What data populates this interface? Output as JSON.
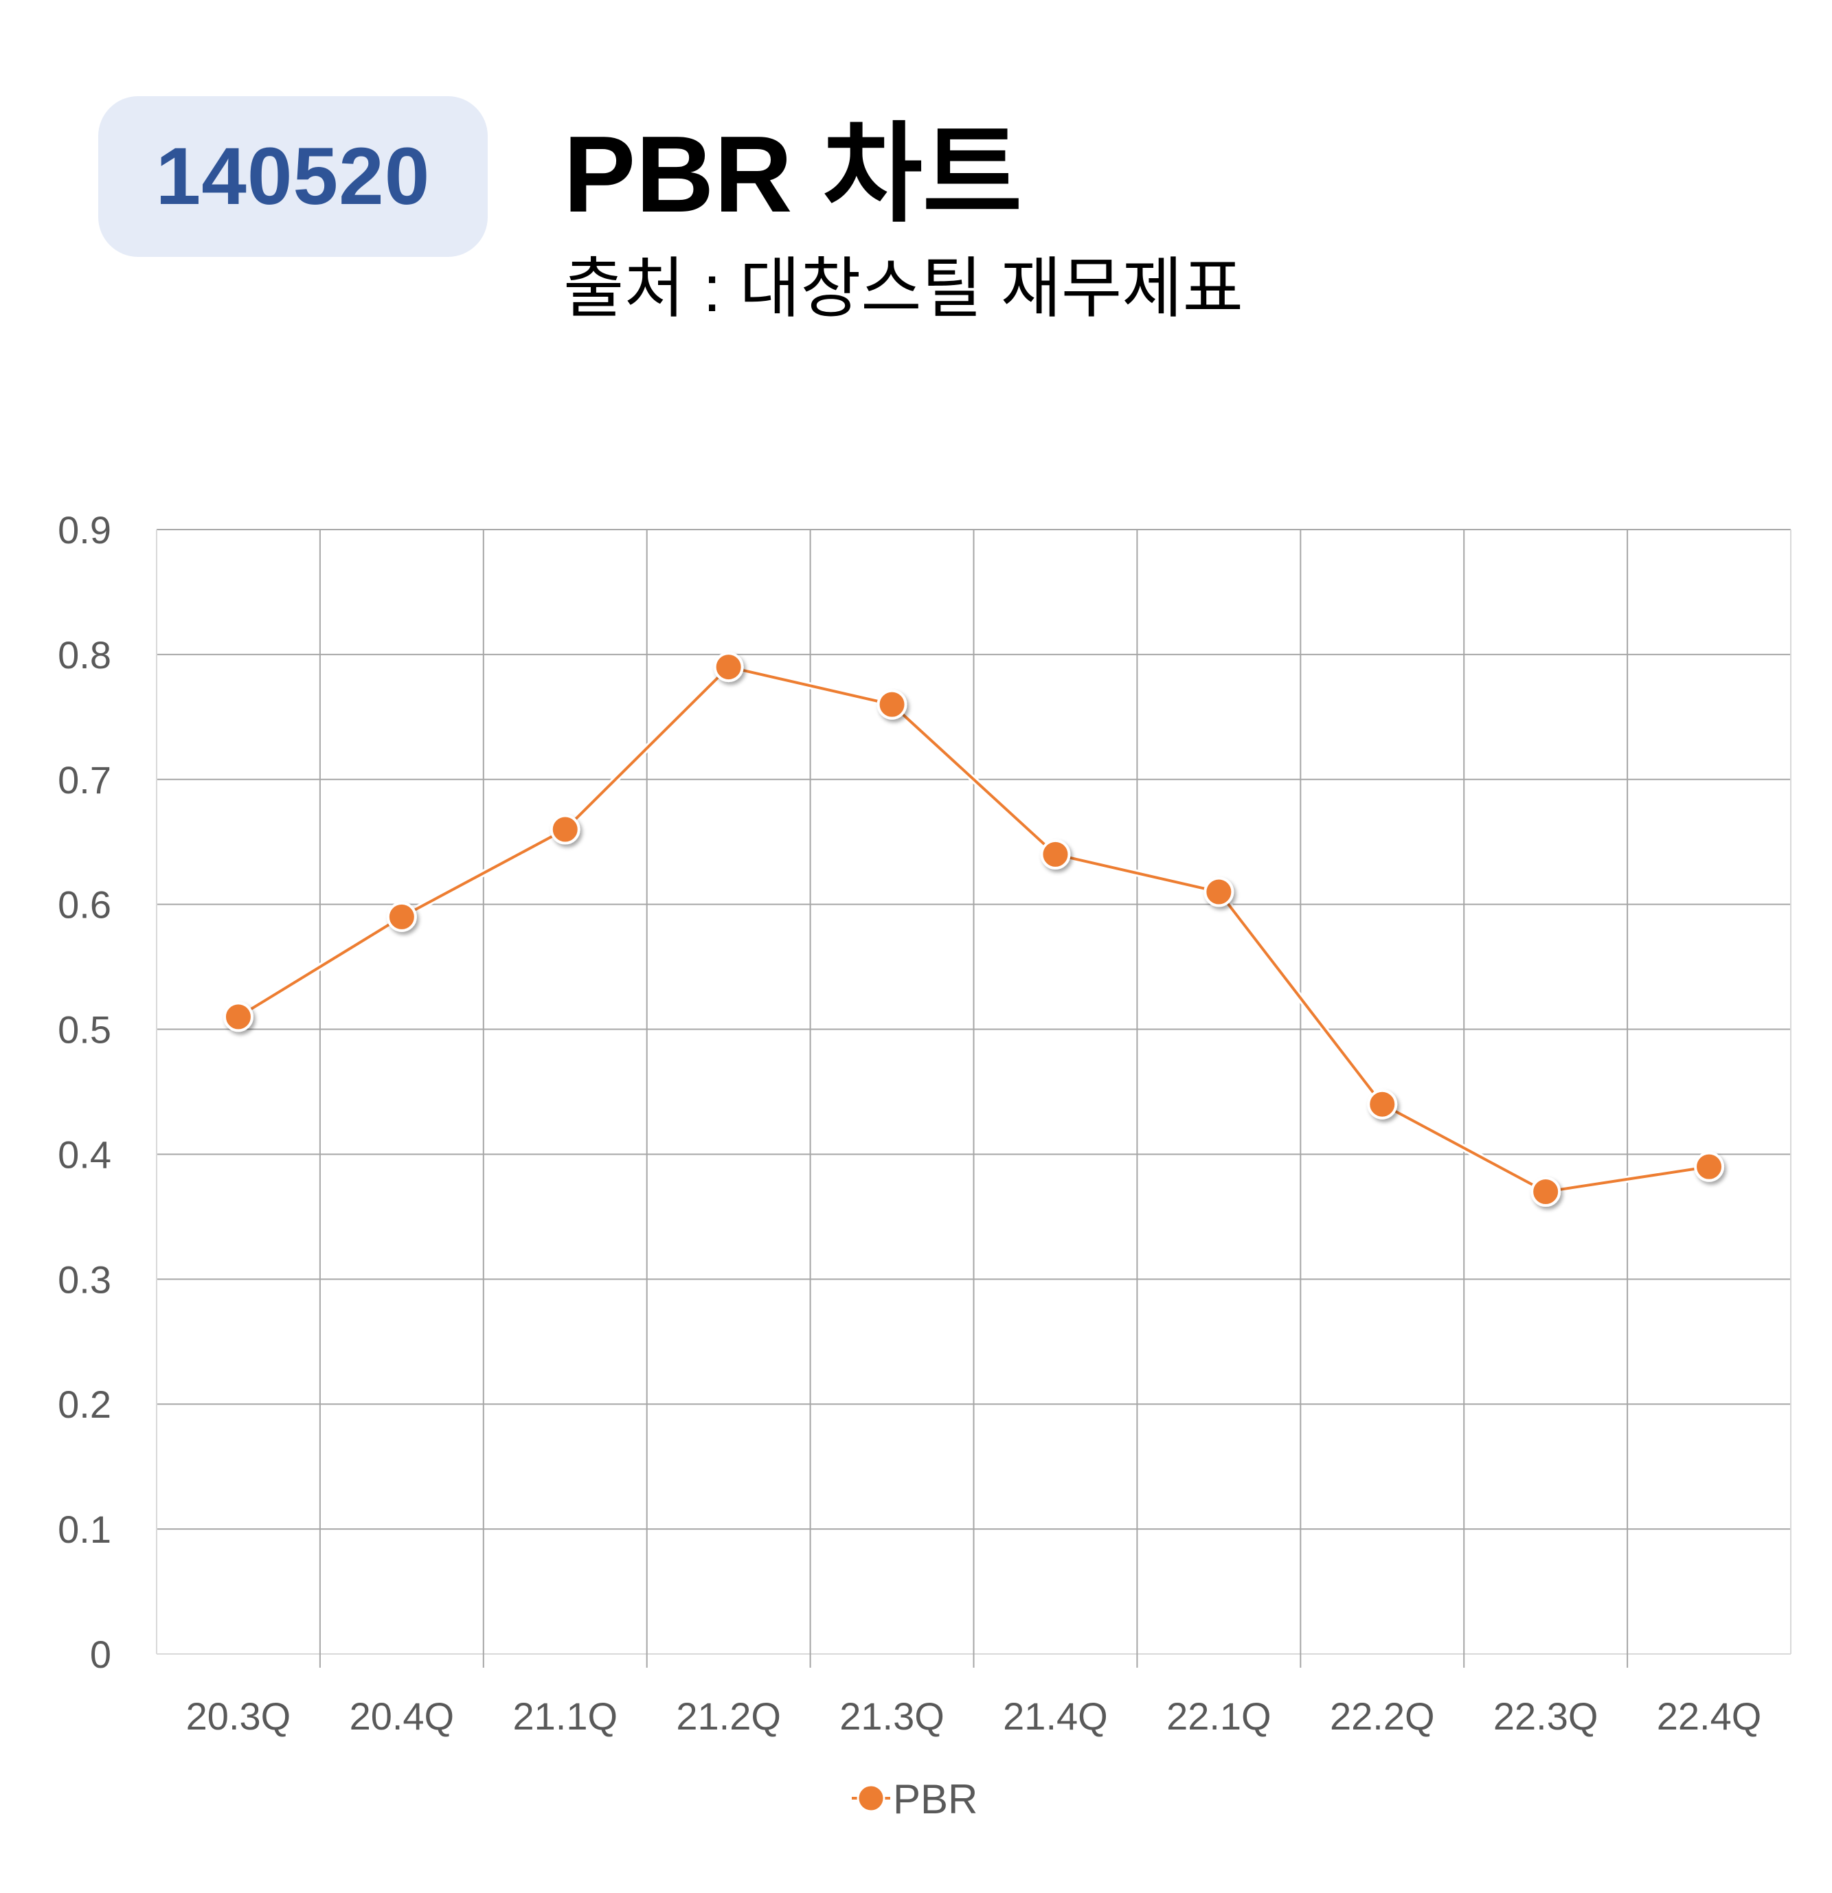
{
  "header": {
    "code": "140520",
    "title": "PBR 차트",
    "subtitle": "출처 : 대창스틸 재무제표"
  },
  "colors": {
    "badge_bg": "#e5ebf7",
    "badge_text": "#2f5497",
    "series": "#ed7d31",
    "grid": "#a6a6a6",
    "tick_text": "#595959"
  },
  "chart_data": {
    "type": "line",
    "categories": [
      "20.3Q",
      "20.4Q",
      "21.1Q",
      "21.2Q",
      "21.3Q",
      "21.4Q",
      "22.1Q",
      "22.2Q",
      "22.3Q",
      "22.4Q"
    ],
    "series": [
      {
        "name": "PBR",
        "values": [
          0.51,
          0.59,
          0.66,
          0.79,
          0.76,
          0.64,
          0.61,
          0.44,
          0.37,
          0.39
        ]
      }
    ],
    "yticks": [
      "0",
      "0.1",
      "0.2",
      "0.3",
      "0.4",
      "0.5",
      "0.6",
      "0.7",
      "0.8",
      "0.9"
    ],
    "ylim": [
      0,
      0.9
    ],
    "grid": true,
    "legend": {
      "position": "bottom-center",
      "label": "PBR"
    }
  }
}
